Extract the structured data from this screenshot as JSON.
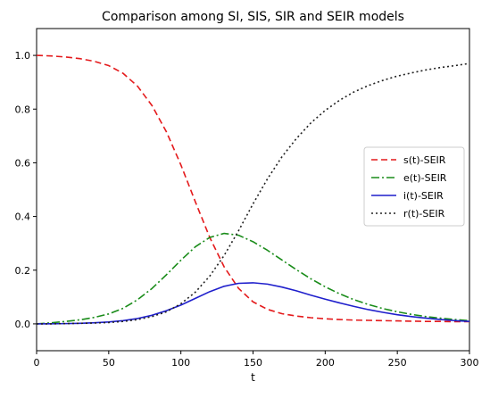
{
  "chart_data": {
    "type": "line",
    "title": "Comparison among SI, SIS, SIR and SEIR models",
    "xlabel": "t",
    "ylabel": "",
    "xlim": [
      0,
      300
    ],
    "ylim": [
      -0.1,
      1.1
    ],
    "xticks": [
      0,
      50,
      100,
      150,
      200,
      250,
      300
    ],
    "yticks": [
      0.0,
      0.2,
      0.4,
      0.6,
      0.8,
      1.0
    ],
    "xtick_labels": [
      "0",
      "50",
      "100",
      "150",
      "200",
      "250",
      "300"
    ],
    "ytick_labels": [
      "0.0",
      "0.2",
      "0.4",
      "0.6",
      "0.8",
      "1.0"
    ],
    "grid": false,
    "legend_position": "center-right",
    "x": [
      0,
      10,
      20,
      30,
      40,
      50,
      60,
      70,
      80,
      90,
      100,
      110,
      120,
      130,
      140,
      150,
      160,
      170,
      180,
      190,
      200,
      210,
      220,
      230,
      240,
      250,
      260,
      270,
      280,
      290,
      300
    ],
    "series": [
      {
        "name": "s(t)-SEIR",
        "color": "#e41a1c",
        "style": "dashed",
        "values": [
          1.0,
          0.998,
          0.994,
          0.988,
          0.978,
          0.962,
          0.933,
          0.885,
          0.813,
          0.715,
          0.592,
          0.455,
          0.322,
          0.212,
          0.132,
          0.082,
          0.054,
          0.038,
          0.029,
          0.023,
          0.019,
          0.016,
          0.014,
          0.013,
          0.012,
          0.011,
          0.01,
          0.009,
          0.009,
          0.008,
          0.008
        ]
      },
      {
        "name": "e(t)-SEIR",
        "color": "#1a8c1a",
        "style": "dashdot",
        "values": [
          0.0,
          0.004,
          0.009,
          0.015,
          0.024,
          0.037,
          0.058,
          0.09,
          0.132,
          0.183,
          0.237,
          0.287,
          0.322,
          0.337,
          0.33,
          0.306,
          0.274,
          0.238,
          0.202,
          0.168,
          0.138,
          0.112,
          0.09,
          0.072,
          0.057,
          0.045,
          0.035,
          0.027,
          0.021,
          0.016,
          0.012
        ]
      },
      {
        "name": "i(t)-SEIR",
        "color": "#1f1fcc",
        "style": "solid",
        "values": [
          0.0,
          0.0005,
          0.001,
          0.002,
          0.004,
          0.007,
          0.012,
          0.02,
          0.032,
          0.049,
          0.07,
          0.095,
          0.12,
          0.14,
          0.151,
          0.153,
          0.148,
          0.137,
          0.123,
          0.107,
          0.092,
          0.078,
          0.065,
          0.053,
          0.043,
          0.034,
          0.027,
          0.021,
          0.016,
          0.012,
          0.009
        ]
      },
      {
        "name": "r(t)-SEIR",
        "color": "#222222",
        "style": "dotted",
        "values": [
          0.0,
          0.0,
          0.001,
          0.002,
          0.003,
          0.005,
          0.009,
          0.016,
          0.027,
          0.045,
          0.075,
          0.118,
          0.178,
          0.255,
          0.347,
          0.447,
          0.54,
          0.622,
          0.69,
          0.748,
          0.795,
          0.833,
          0.864,
          0.888,
          0.907,
          0.923,
          0.935,
          0.946,
          0.955,
          0.962,
          0.97
        ]
      }
    ]
  }
}
